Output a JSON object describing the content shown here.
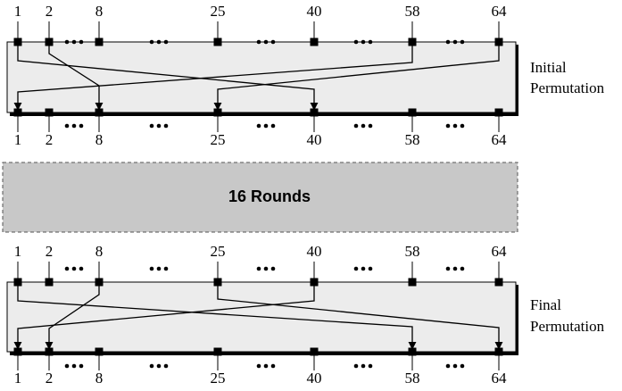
{
  "initial_permutation": {
    "label": [
      "Initial",
      "Permutation"
    ],
    "top_labels": [
      "1",
      "2",
      "8",
      "25",
      "40",
      "58",
      "64"
    ],
    "bottom_labels": [
      "1",
      "2",
      "8",
      "25",
      "40",
      "58",
      "64"
    ]
  },
  "rounds": {
    "label": "16 Rounds"
  },
  "final_permutation": {
    "label": [
      "Final",
      "Permutation"
    ],
    "top_labels": [
      "1",
      "2",
      "8",
      "25",
      "40",
      "58",
      "64"
    ],
    "bottom_labels": [
      "1",
      "2",
      "8",
      "25",
      "40",
      "58",
      "64"
    ]
  }
}
